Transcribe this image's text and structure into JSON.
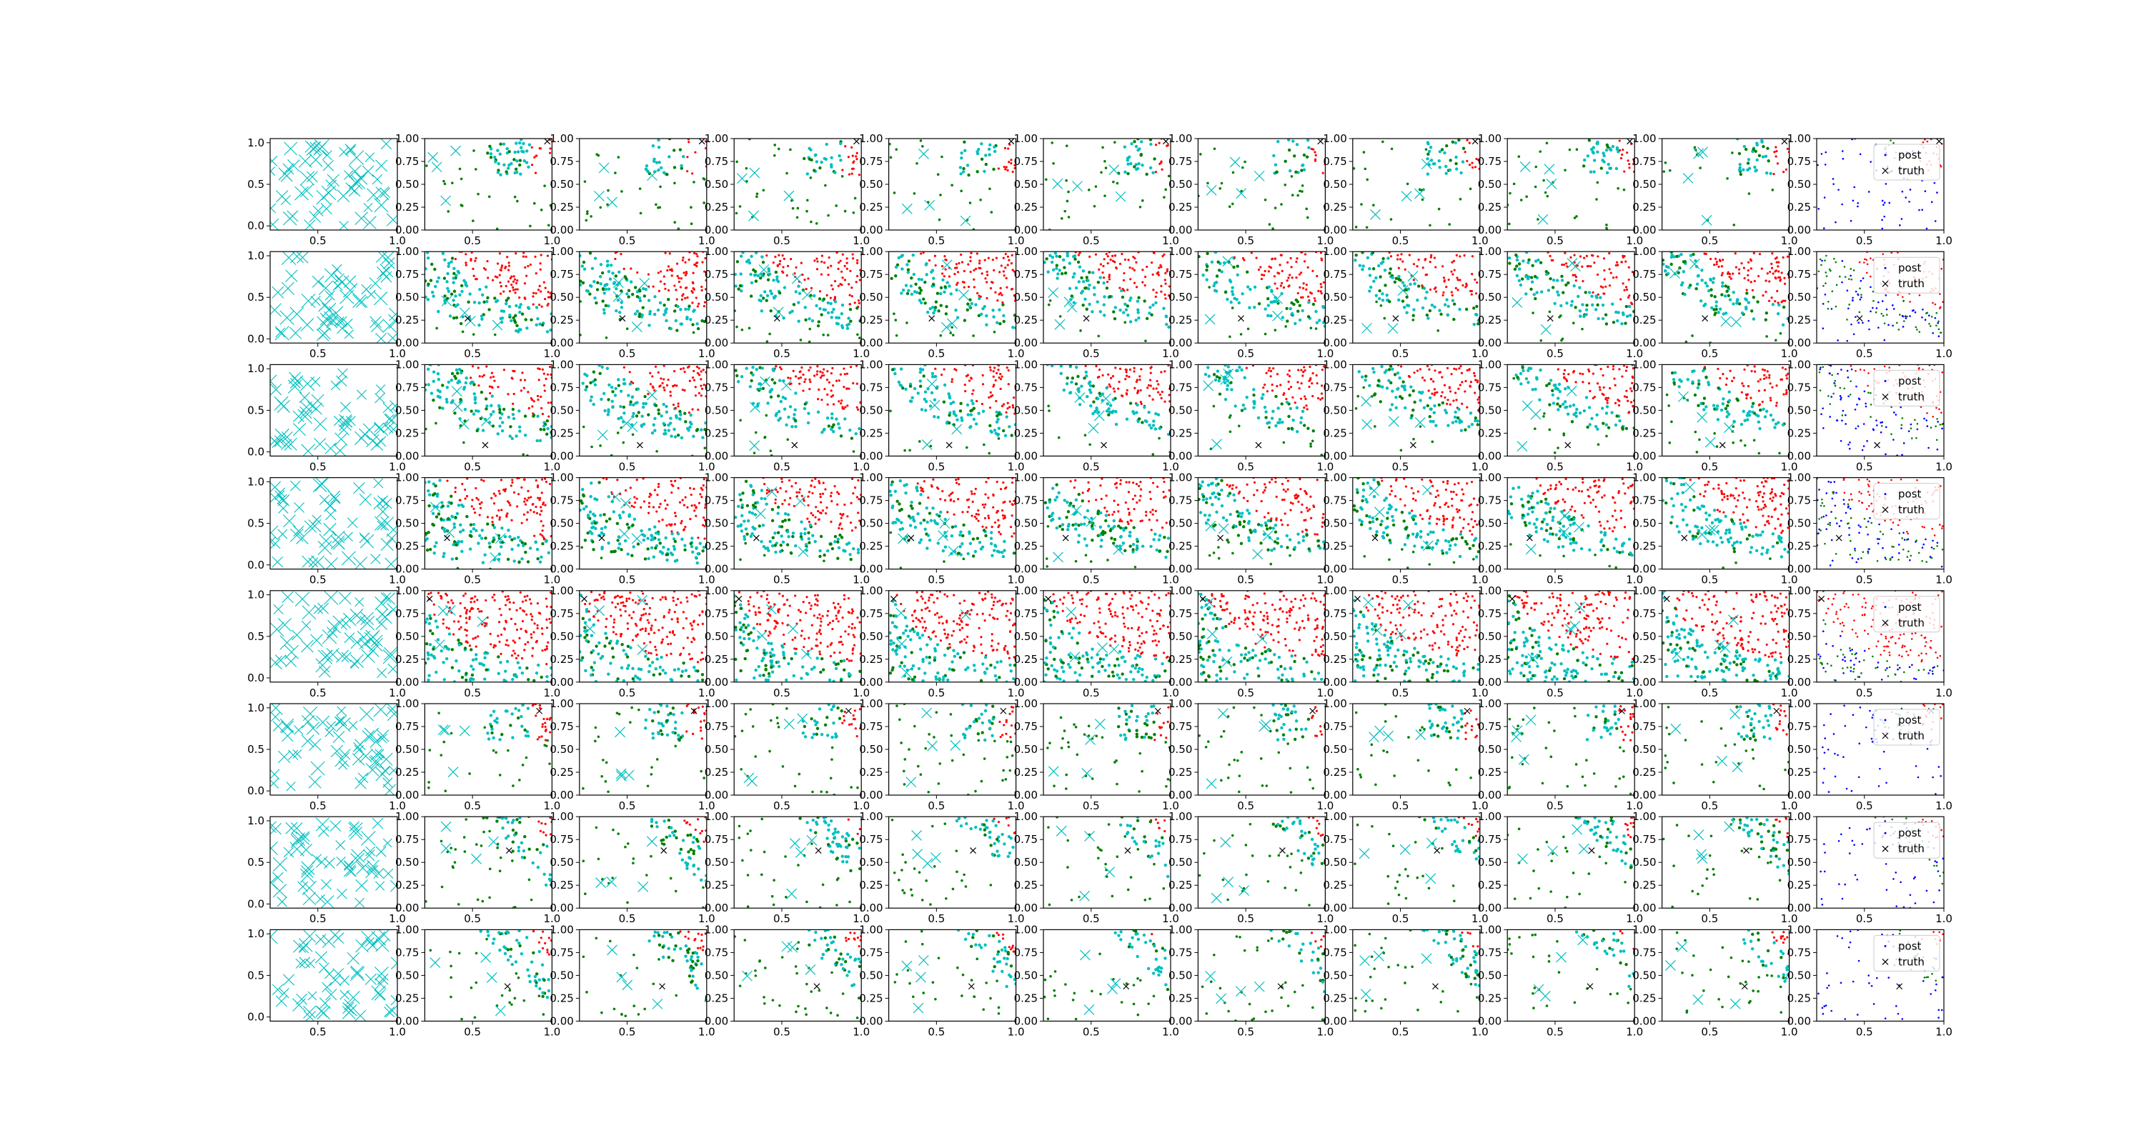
{
  "figure": {
    "rows": 8,
    "cols": 11,
    "colors": {
      "samples": "#00bfbf",
      "accepted": "#008000",
      "rejected": "#ff0000",
      "post": "#0000ff",
      "truth": "#000000",
      "axes": "#000000",
      "legend_bg": "#ffffff"
    }
  },
  "chart_data": {
    "type": "scatter",
    "title": "",
    "xlim": [
      0.2,
      1.0
    ],
    "ylim": [
      0.0,
      1.0
    ],
    "first_col_ylim": [
      -0.05,
      1.05
    ],
    "x_ticks": [
      "0.5",
      "1.0"
    ],
    "y_ticks_first_col": [
      "0.0",
      "0.5",
      "1.0"
    ],
    "y_ticks": [
      "0.00",
      "0.25",
      "0.50",
      "0.75",
      "1.00"
    ],
    "legend": {
      "entries": [
        "post",
        "truth"
      ],
      "location": "upper right"
    },
    "series": [
      {
        "marker": "x",
        "color": "cyan"
      },
      {
        "marker": "dot",
        "color": "green"
      },
      {
        "marker": "dot",
        "color": "red"
      },
      {
        "marker": "dot",
        "color": "blue"
      }
    ],
    "rows": [
      {
        "shape": "corner",
        "truth": [
          0.97,
          0.97
        ]
      },
      {
        "shape": "curve",
        "k": 0.35,
        "truth": [
          0.47,
          0.27
        ]
      },
      {
        "shape": "curve",
        "k": 0.4,
        "truth": [
          0.58,
          0.12
        ]
      },
      {
        "shape": "curve",
        "k": 0.3,
        "truth": [
          0.34,
          0.34
        ]
      },
      {
        "shape": "curve",
        "k": 0.18,
        "truth": [
          0.23,
          0.91
        ]
      },
      {
        "shape": "corner",
        "truth": [
          0.92,
          0.92
        ]
      },
      {
        "shape": "band",
        "truth": [
          0.73,
          0.63
        ]
      },
      {
        "shape": "band",
        "truth": [
          0.72,
          0.38
        ]
      }
    ]
  }
}
